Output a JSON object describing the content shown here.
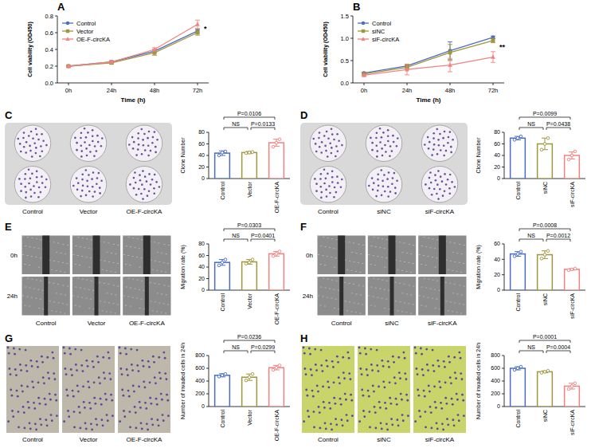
{
  "chart_data": [
    {
      "panel": "A",
      "type": "line",
      "x_label": "Time (h)",
      "y_label": "Cell viability (OD450)",
      "categories": [
        "0h",
        "24h",
        "48h",
        "72h"
      ],
      "ylim": [
        0,
        0.8
      ],
      "yticks": [
        {
          "value": 0,
          "label": "0.0"
        },
        0.2,
        0.4,
        0.6,
        0.8
      ],
      "grid": false,
      "legend": "upper left",
      "series": [
        {
          "name": "Control",
          "color": "#4a6cc4",
          "marker": "circle",
          "values": [
            0.2,
            0.25,
            0.38,
            0.62
          ],
          "errors": [
            0.01,
            0.015,
            0.02,
            0.02
          ]
        },
        {
          "name": "Vector",
          "color": "#a0963c",
          "marker": "square",
          "values": [
            0.2,
            0.24,
            0.36,
            0.6
          ],
          "errors": [
            0.01,
            0.015,
            0.03,
            0.03
          ]
        },
        {
          "name": "OE-F-circKA",
          "color": "#f2827f",
          "marker": "triangle",
          "values": [
            0.2,
            0.25,
            0.4,
            0.7
          ],
          "errors": [
            0.01,
            0.015,
            0.02,
            0.05
          ]
        }
      ],
      "annotations": [
        {
          "text": "*",
          "at": "72h"
        }
      ]
    },
    {
      "panel": "B",
      "type": "line",
      "x_label": "Time (h)",
      "y_label": "Cell viability (OD450)",
      "categories": [
        "0h",
        "24h",
        "48h",
        "72h"
      ],
      "ylim": [
        0,
        1.5
      ],
      "yticks": [
        {
          "value": 0,
          "label": "0.0"
        },
        0.5,
        {
          "value": 1,
          "label": "1.0"
        },
        1.5
      ],
      "grid": false,
      "legend": "upper left",
      "series": [
        {
          "name": "Control",
          "color": "#4a6cc4",
          "marker": "circle",
          "values": [
            0.22,
            0.38,
            0.72,
            1.02
          ],
          "errors": [
            0.02,
            0.04,
            0.2,
            0.03
          ]
        },
        {
          "name": "siNC",
          "color": "#a0963c",
          "marker": "square",
          "values": [
            0.2,
            0.35,
            0.68,
            0.95
          ],
          "errors": [
            0.02,
            0.05,
            0.18,
            0.05
          ]
        },
        {
          "name": "siF-circKA",
          "color": "#f2827f",
          "marker": "triangle",
          "values": [
            0.17,
            0.3,
            0.4,
            0.58
          ],
          "errors": [
            0.02,
            0.12,
            0.15,
            0.12
          ]
        }
      ],
      "annotations": [
        {
          "text": "**",
          "at": "72h"
        }
      ]
    },
    {
      "panel": "C",
      "type": "bar",
      "y_label": "Clone Number",
      "categories": [
        "Control",
        "Vector",
        "OE-F-circKA"
      ],
      "values": [
        44,
        45,
        62
      ],
      "errors": [
        4,
        2,
        6
      ],
      "points": [
        [
          40,
          45,
          47
        ],
        [
          44,
          45,
          46
        ],
        [
          55,
          62,
          68
        ]
      ],
      "colors": [
        "#4a6cc4",
        "#a0963c",
        "#f2827f"
      ],
      "ylim": [
        0,
        80
      ],
      "yticks": [
        0,
        20,
        40,
        60,
        80
      ],
      "grid": false,
      "image_labels": [
        "Control",
        "Vector",
        "OE-F-circKA"
      ],
      "annotations": [
        {
          "text": "NS",
          "between": [
            "Control",
            "Vector"
          ]
        },
        {
          "text": "P=0.0133",
          "between": [
            "Vector",
            "OE-F-circKA"
          ]
        },
        {
          "text": "P=0.0106",
          "between": [
            "Control",
            "OE-F-circKA"
          ]
        }
      ]
    },
    {
      "panel": "D",
      "type": "bar",
      "y_label": "Clone Number",
      "categories": [
        "Control",
        "siNC",
        "siF-circKA"
      ],
      "values": [
        70,
        60,
        40
      ],
      "errors": [
        3,
        10,
        6
      ],
      "points": [
        [
          67,
          70,
          73
        ],
        [
          50,
          60,
          70
        ],
        [
          33,
          40,
          47
        ]
      ],
      "colors": [
        "#4a6cc4",
        "#a0963c",
        "#f2827f"
      ],
      "ylim": [
        0,
        80
      ],
      "yticks": [
        0,
        20,
        40,
        60,
        80
      ],
      "grid": false,
      "image_labels": [
        "Control",
        "siNC",
        "siF-circKA"
      ],
      "annotations": [
        {
          "text": "NS",
          "between": [
            "Control",
            "siNC"
          ]
        },
        {
          "text": "P=0.0438",
          "between": [
            "siNC",
            "siF-circKA"
          ]
        },
        {
          "text": "P=0.0099",
          "between": [
            "Control",
            "siF-circKA"
          ]
        }
      ]
    },
    {
      "panel": "E",
      "type": "bar",
      "y_label": "Migration rate (%)",
      "categories": [
        "Control",
        "Vector",
        "OE-F-circKA"
      ],
      "values": [
        48,
        49,
        63
      ],
      "errors": [
        5,
        4,
        4
      ],
      "points": [
        [
          43,
          48,
          53
        ],
        [
          46,
          48,
          53
        ],
        [
          59,
          63,
          67
        ]
      ],
      "colors": [
        "#4a6cc4",
        "#a0963c",
        "#f2827f"
      ],
      "ylim": [
        0,
        80
      ],
      "yticks": [
        0,
        20,
        40,
        60,
        80
      ],
      "grid": false,
      "image_labels": [
        "Control",
        "Vector",
        "OE-F-circKA"
      ],
      "time_labels": [
        "0h",
        "24h"
      ],
      "annotations": [
        {
          "text": "NS",
          "between": [
            "Control",
            "Vector"
          ]
        },
        {
          "text": "P=0.0401",
          "between": [
            "Vector",
            "OE-F-circKA"
          ]
        },
        {
          "text": "P=0.0303",
          "between": [
            "Control",
            "OE-F-circKA"
          ]
        }
      ]
    },
    {
      "panel": "F",
      "type": "bar",
      "y_label": "Migration rate (%)",
      "categories": [
        "Control",
        "siNC",
        "siF-circKA"
      ],
      "values": [
        47,
        46,
        27
      ],
      "errors": [
        3,
        5,
        1
      ],
      "points": [
        [
          44,
          47,
          50
        ],
        [
          41,
          46,
          51
        ],
        [
          26,
          27,
          28
        ]
      ],
      "colors": [
        "#4a6cc4",
        "#a0963c",
        "#f2827f"
      ],
      "ylim": [
        0,
        60
      ],
      "yticks": [
        0,
        20,
        40,
        60
      ],
      "grid": false,
      "image_labels": [
        "Control",
        "siNC",
        "siF-circKA"
      ],
      "time_labels": [
        "0h",
        "24h"
      ],
      "annotations": [
        {
          "text": "NS",
          "between": [
            "Control",
            "siNC"
          ]
        },
        {
          "text": "P=0.0012",
          "between": [
            "siNC",
            "siF-circKA"
          ]
        },
        {
          "text": "P=0.0008",
          "between": [
            "Control",
            "siF-circKA"
          ]
        }
      ]
    },
    {
      "panel": "G",
      "type": "bar",
      "y_label": "Number of invaded cells in 24h",
      "categories": [
        "Control",
        "Vector",
        "OE-F-circKA"
      ],
      "values": [
        490,
        460,
        610
      ],
      "errors": [
        25,
        50,
        35
      ],
      "points": [
        [
          470,
          490,
          510
        ],
        [
          410,
          460,
          510
        ],
        [
          575,
          610,
          645
        ]
      ],
      "colors": [
        "#4a6cc4",
        "#a0963c",
        "#f2827f"
      ],
      "ylim": [
        0,
        800
      ],
      "yticks": [
        0,
        200,
        400,
        600,
        800
      ],
      "grid": false,
      "image_labels": [
        "Control",
        "Vector",
        "OE-F-circKA"
      ],
      "annotations": [
        {
          "text": "NS",
          "between": [
            "Control",
            "Vector"
          ]
        },
        {
          "text": "P=0.0299",
          "between": [
            "Vector",
            "OE-F-circKA"
          ]
        },
        {
          "text": "P=0.0236",
          "between": [
            "Control",
            "OE-F-circKA"
          ]
        }
      ]
    },
    {
      "panel": "H",
      "type": "bar",
      "y_label": "Number of invaded cells in 24h",
      "categories": [
        "Control",
        "siNC",
        "siF-circKA"
      ],
      "values": [
        600,
        545,
        320
      ],
      "errors": [
        25,
        15,
        45
      ],
      "points": [
        [
          575,
          600,
          625
        ],
        [
          530,
          545,
          560
        ],
        [
          275,
          320,
          365
        ]
      ],
      "colors": [
        "#4a6cc4",
        "#a0963c",
        "#f2827f"
      ],
      "ylim": [
        0,
        800
      ],
      "yticks": [
        0,
        200,
        400,
        600,
        800
      ],
      "grid": false,
      "image_labels": [
        "Control",
        "siNC",
        "siF-circKA"
      ],
      "annotations": [
        {
          "text": "NS",
          "between": [
            "Control",
            "siNC"
          ]
        },
        {
          "text": "P=0.0004",
          "between": [
            "siNC",
            "siF-circKA"
          ]
        },
        {
          "text": "P=0.0001",
          "between": [
            "Control",
            "siF-circKA"
          ]
        }
      ]
    }
  ]
}
